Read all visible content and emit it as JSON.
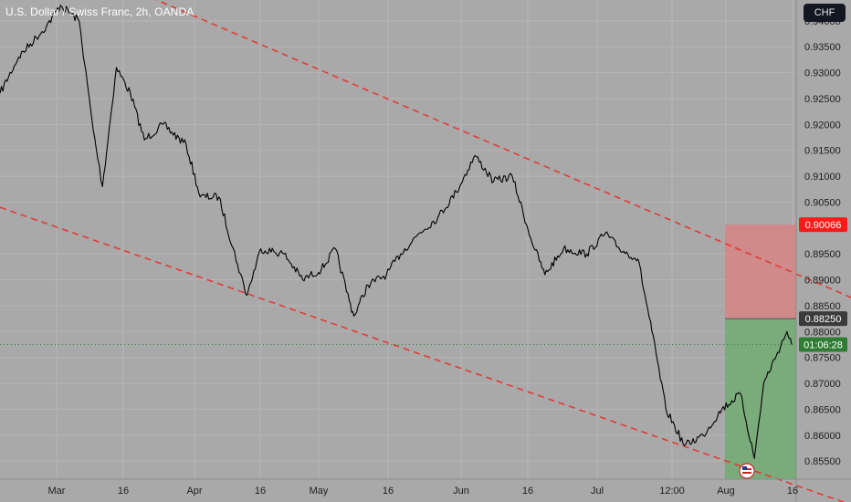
{
  "header": {
    "title": "U.S. Dollar / Swiss Franc, 2h, OANDA",
    "currency_button": "CHF"
  },
  "colors": {
    "background": "#a9a9a9",
    "price_line": "#000000",
    "channel": "#e53935",
    "stop_zone": "#d08a8a",
    "target_zone": "#7aab7a",
    "stop_tag": "#ff1a1a",
    "entry_tag": "#3b3b3b",
    "timer_tag": "#2e7d32"
  },
  "price_axis": {
    "ticks": [
      "0.94000",
      "0.93500",
      "0.93000",
      "0.92500",
      "0.92000",
      "0.91500",
      "0.91000",
      "0.90500",
      "0.89500",
      "0.89000",
      "0.88500",
      "0.88000",
      "0.87500",
      "0.87000",
      "0.86500",
      "0.86000",
      "0.85500"
    ]
  },
  "time_axis": {
    "ticks": [
      "Mar",
      "16",
      "Apr",
      "16",
      "May",
      "16",
      "Jun",
      "16",
      "Jul",
      "12:00",
      "Aug",
      "16"
    ]
  },
  "tags": {
    "stop_price": "0.90066",
    "entry_price": "0.88250",
    "countdown": "01:06:28"
  },
  "chart_data": {
    "type": "line",
    "symbol": "USD/CHF",
    "interval": "2h",
    "ylim": [
      0.8515,
      0.9435
    ],
    "x_ticks": [
      "Mar",
      "16",
      "Apr",
      "16",
      "May",
      "16",
      "Jun",
      "16",
      "Jul",
      "12:00",
      "Aug",
      "16"
    ],
    "series": [
      {
        "points": [
          [
            "Feb 20",
            0.926
          ],
          [
            "Feb 24",
            0.933
          ],
          [
            "Mar 1",
            0.939
          ],
          [
            "Mar 4",
            0.943
          ],
          [
            "Mar 8",
            0.94
          ],
          [
            "Mar 11",
            0.919
          ],
          [
            "Mar 13",
            0.908
          ],
          [
            "Mar 16",
            0.931
          ],
          [
            "Mar 19",
            0.926
          ],
          [
            "Mar 22",
            0.917
          ],
          [
            "Mar 26",
            0.92
          ],
          [
            "Mar 31",
            0.916
          ],
          [
            "Apr 3",
            0.906
          ],
          [
            "Apr 7",
            0.906
          ],
          [
            "Apr 11",
            0.893
          ],
          [
            "Apr 13",
            0.887
          ],
          [
            "Apr 16",
            0.896
          ],
          [
            "Apr 21",
            0.895
          ],
          [
            "Apr 25",
            0.89
          ],
          [
            "Apr 29",
            0.892
          ],
          [
            "May 2",
            0.896
          ],
          [
            "May 5",
            0.886
          ],
          [
            "May 6",
            0.883
          ],
          [
            "May 9",
            0.889
          ],
          [
            "May 13",
            0.891
          ],
          [
            "May 16",
            0.895
          ],
          [
            "May 20",
            0.899
          ],
          [
            "May 24",
            0.902
          ],
          [
            "May 28",
            0.907
          ],
          [
            "Jun 1",
            0.914
          ],
          [
            "Jun 5",
            0.909
          ],
          [
            "Jun 9",
            0.91
          ],
          [
            "Jun 13",
            0.898
          ],
          [
            "Jun 16",
            0.891
          ],
          [
            "Jun 20",
            0.896
          ],
          [
            "Jun 25",
            0.895
          ],
          [
            "Jun 29",
            0.899
          ],
          [
            "Jul 2",
            0.896
          ],
          [
            "Jul 6",
            0.894
          ],
          [
            "Jul 9",
            0.88
          ],
          [
            "Jul 12",
            0.865
          ],
          [
            "Jul 16",
            0.858
          ],
          [
            "Jul 20",
            0.86
          ],
          [
            "Jul 24",
            0.865
          ],
          [
            "Jul 28",
            0.868
          ],
          [
            "Jul 31",
            0.8555
          ],
          [
            "Aug 2",
            0.87
          ],
          [
            "Aug 5",
            0.876
          ],
          [
            "Aug 7",
            0.88
          ],
          [
            "Aug 8",
            0.8775
          ]
        ]
      }
    ],
    "channel": {
      "upper": [
        [
          "Feb 20",
          0.957
        ],
        [
          "Aug 21",
          0.8865
        ]
      ],
      "lower": [
        [
          "Feb 20",
          0.904
        ],
        [
          "Aug 21",
          0.8465
        ]
      ]
    },
    "position": {
      "stop": 0.90066,
      "entry": 0.8825,
      "target_low": 0.8515
    }
  }
}
